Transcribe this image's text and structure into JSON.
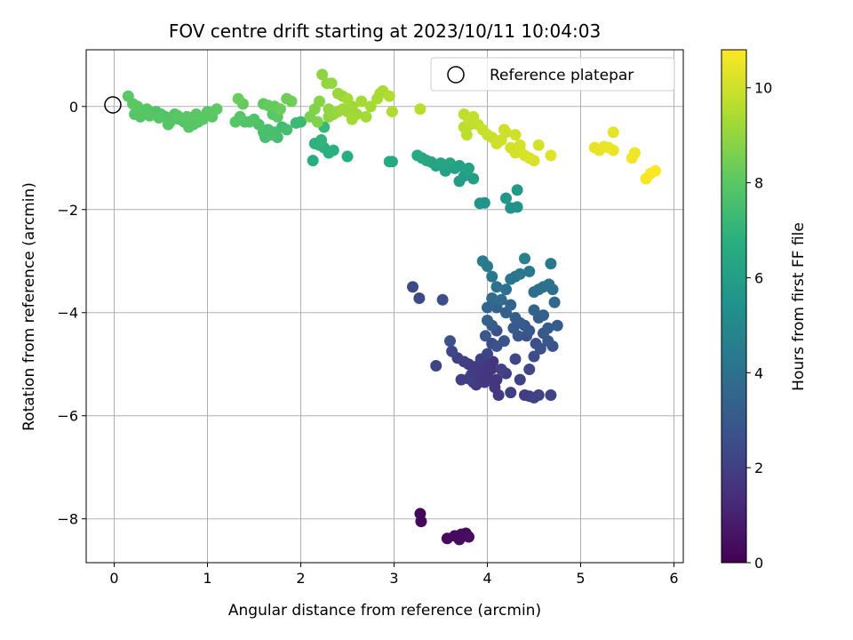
{
  "chart_data": {
    "type": "scatter",
    "title": "FOV centre drift starting at 2023/10/11 10:04:03",
    "xlabel": "Angular distance from reference (arcmin)",
    "ylabel": "Rotation from reference (arcmin)",
    "colorbar_label": "Hours from first FF file",
    "xlim": [
      -0.3,
      6.1
    ],
    "ylim": [
      -8.85,
      1.1
    ],
    "x_ticks": [
      0,
      1,
      2,
      3,
      4,
      5,
      6
    ],
    "y_ticks": [
      -8,
      -6,
      -4,
      -2,
      0
    ],
    "colorbar_range": [
      0,
      10.8
    ],
    "colorbar_ticks": [
      0,
      2,
      4,
      6,
      8,
      10
    ],
    "grid": true,
    "legend": {
      "placement": "top-right",
      "entries": [
        "Reference platepar"
      ]
    },
    "reference_point": {
      "x": 0,
      "y": 0
    },
    "colormap": "viridis",
    "points": [
      {
        "x": 3.28,
        "y": -7.9,
        "t": 0.2
      },
      {
        "x": 3.29,
        "y": -8.05,
        "t": 0.2
      },
      {
        "x": 3.57,
        "y": -8.38,
        "t": 0.3
      },
      {
        "x": 3.65,
        "y": -8.33,
        "t": 0.3
      },
      {
        "x": 3.7,
        "y": -8.4,
        "t": 0.3
      },
      {
        "x": 3.72,
        "y": -8.3,
        "t": 0.35
      },
      {
        "x": 3.77,
        "y": -8.28,
        "t": 0.35
      },
      {
        "x": 3.8,
        "y": -8.35,
        "t": 0.4
      },
      {
        "x": 3.2,
        "y": -3.5,
        "t": 2.4
      },
      {
        "x": 3.27,
        "y": -3.72,
        "t": 2.4
      },
      {
        "x": 3.45,
        "y": -5.03,
        "t": 2.2
      },
      {
        "x": 3.52,
        "y": -3.75,
        "t": 2.6
      },
      {
        "x": 3.6,
        "y": -4.55,
        "t": 2.7
      },
      {
        "x": 3.62,
        "y": -4.75,
        "t": 2.3
      },
      {
        "x": 3.68,
        "y": -4.88,
        "t": 2.1
      },
      {
        "x": 3.72,
        "y": -5.3,
        "t": 2.0
      },
      {
        "x": 3.75,
        "y": -4.95,
        "t": 2.0
      },
      {
        "x": 3.8,
        "y": -5.0,
        "t": 1.9
      },
      {
        "x": 3.83,
        "y": -5.2,
        "t": 1.9
      },
      {
        "x": 3.87,
        "y": -5.05,
        "t": 1.8
      },
      {
        "x": 3.9,
        "y": -5.1,
        "t": 1.8
      },
      {
        "x": 3.92,
        "y": -5.25,
        "t": 1.8
      },
      {
        "x": 3.95,
        "y": -5.15,
        "t": 1.7
      },
      {
        "x": 3.97,
        "y": -5.35,
        "t": 1.7
      },
      {
        "x": 3.99,
        "y": -5.0,
        "t": 1.7
      },
      {
        "x": 4.0,
        "y": -5.2,
        "t": 1.6
      },
      {
        "x": 4.02,
        "y": -5.3,
        "t": 1.6
      },
      {
        "x": 4.04,
        "y": -5.1,
        "t": 1.6
      },
      {
        "x": 4.06,
        "y": -4.95,
        "t": 1.6
      },
      {
        "x": 4.08,
        "y": -5.45,
        "t": 1.7
      },
      {
        "x": 4.1,
        "y": -5.3,
        "t": 1.7
      },
      {
        "x": 4.12,
        "y": -5.6,
        "t": 1.8
      },
      {
        "x": 3.88,
        "y": -5.4,
        "t": 1.8
      },
      {
        "x": 3.85,
        "y": -5.35,
        "t": 1.9
      },
      {
        "x": 3.8,
        "y": -5.28,
        "t": 2.0
      },
      {
        "x": 3.93,
        "y": -4.9,
        "t": 2.0
      },
      {
        "x": 4.0,
        "y": -4.8,
        "t": 2.2
      },
      {
        "x": 4.05,
        "y": -4.6,
        "t": 2.4
      },
      {
        "x": 4.1,
        "y": -4.35,
        "t": 2.6
      },
      {
        "x": 4.15,
        "y": -5.1,
        "t": 2.1
      },
      {
        "x": 4.2,
        "y": -5.18,
        "t": 2.0
      },
      {
        "x": 4.25,
        "y": -5.55,
        "t": 2.0
      },
      {
        "x": 4.3,
        "y": -4.9,
        "t": 2.3
      },
      {
        "x": 4.35,
        "y": -5.3,
        "t": 2.1
      },
      {
        "x": 4.4,
        "y": -5.6,
        "t": 2.0
      },
      {
        "x": 4.45,
        "y": -5.62,
        "t": 2.0
      },
      {
        "x": 4.5,
        "y": -5.65,
        "t": 2.1
      },
      {
        "x": 4.55,
        "y": -5.6,
        "t": 2.1
      },
      {
        "x": 4.68,
        "y": -5.6,
        "t": 2.2
      },
      {
        "x": 4.45,
        "y": -5.1,
        "t": 2.3
      },
      {
        "x": 4.5,
        "y": -4.85,
        "t": 2.5
      },
      {
        "x": 4.57,
        "y": -4.7,
        "t": 2.7
      },
      {
        "x": 4.6,
        "y": -4.4,
        "t": 3.0
      },
      {
        "x": 4.65,
        "y": -4.55,
        "t": 2.9
      },
      {
        "x": 4.7,
        "y": -4.65,
        "t": 2.8
      },
      {
        "x": 4.75,
        "y": -4.25,
        "t": 3.1
      },
      {
        "x": 4.72,
        "y": -3.8,
        "t": 3.6
      },
      {
        "x": 4.7,
        "y": -3.55,
        "t": 3.9
      },
      {
        "x": 4.66,
        "y": -3.45,
        "t": 4.0
      },
      {
        "x": 4.6,
        "y": -3.5,
        "t": 4.0
      },
      {
        "x": 4.55,
        "y": -3.55,
        "t": 3.9
      },
      {
        "x": 4.5,
        "y": -3.6,
        "t": 3.8
      },
      {
        "x": 4.45,
        "y": -3.2,
        "t": 4.3
      },
      {
        "x": 4.4,
        "y": -2.95,
        "t": 4.6
      },
      {
        "x": 4.35,
        "y": -3.25,
        "t": 4.3
      },
      {
        "x": 4.3,
        "y": -3.3,
        "t": 4.2
      },
      {
        "x": 4.25,
        "y": -3.35,
        "t": 4.2
      },
      {
        "x": 4.2,
        "y": -3.55,
        "t": 4.0
      },
      {
        "x": 4.15,
        "y": -3.75,
        "t": 3.8
      },
      {
        "x": 4.1,
        "y": -3.5,
        "t": 4.0
      },
      {
        "x": 4.05,
        "y": -3.3,
        "t": 4.3
      },
      {
        "x": 4.0,
        "y": -3.1,
        "t": 4.4
      },
      {
        "x": 3.95,
        "y": -3.0,
        "t": 4.5
      },
      {
        "x": 4.05,
        "y": -3.72,
        "t": 3.7
      },
      {
        "x": 4.0,
        "y": -3.9,
        "t": 3.5
      },
      {
        "x": 4.1,
        "y": -3.9,
        "t": 3.4
      },
      {
        "x": 4.2,
        "y": -4.0,
        "t": 3.3
      },
      {
        "x": 4.25,
        "y": -3.85,
        "t": 3.5
      },
      {
        "x": 4.3,
        "y": -4.1,
        "t": 3.2
      },
      {
        "x": 4.35,
        "y": -4.2,
        "t": 3.1
      },
      {
        "x": 4.4,
        "y": -4.25,
        "t": 3.0
      },
      {
        "x": 4.45,
        "y": -4.35,
        "t": 2.9
      },
      {
        "x": 4.5,
        "y": -3.95,
        "t": 3.4
      },
      {
        "x": 4.55,
        "y": -4.1,
        "t": 3.2
      },
      {
        "x": 4.6,
        "y": -4.05,
        "t": 3.3
      },
      {
        "x": 4.65,
        "y": -4.3,
        "t": 3.0
      },
      {
        "x": 4.68,
        "y": -3.05,
        "t": 4.4
      },
      {
        "x": 4.0,
        "y": -4.15,
        "t": 3.3
      },
      {
        "x": 3.98,
        "y": -4.45,
        "t": 2.9
      },
      {
        "x": 4.05,
        "y": -4.25,
        "t": 3.1
      },
      {
        "x": 4.1,
        "y": -4.65,
        "t": 2.7
      },
      {
        "x": 4.18,
        "y": -4.55,
        "t": 2.8
      },
      {
        "x": 4.28,
        "y": -4.3,
        "t": 3.0
      },
      {
        "x": 4.33,
        "y": -4.45,
        "t": 2.9
      },
      {
        "x": 4.42,
        "y": -4.45,
        "t": 2.8
      },
      {
        "x": 4.52,
        "y": -4.6,
        "t": 2.6
      },
      {
        "x": 3.92,
        "y": -1.88,
        "t": 5.6
      },
      {
        "x": 3.97,
        "y": -1.87,
        "t": 5.6
      },
      {
        "x": 4.2,
        "y": -1.78,
        "t": 5.7
      },
      {
        "x": 4.25,
        "y": -1.97,
        "t": 5.5
      },
      {
        "x": 4.32,
        "y": -1.95,
        "t": 5.5
      },
      {
        "x": 4.32,
        "y": -1.62,
        "t": 5.8
      },
      {
        "x": 3.85,
        "y": -1.4,
        "t": 6.0
      },
      {
        "x": 3.8,
        "y": -1.2,
        "t": 6.2
      },
      {
        "x": 3.75,
        "y": -1.35,
        "t": 6.0
      },
      {
        "x": 3.7,
        "y": -1.45,
        "t": 5.9
      },
      {
        "x": 3.65,
        "y": -1.2,
        "t": 6.2
      },
      {
        "x": 3.6,
        "y": -1.1,
        "t": 6.3
      },
      {
        "x": 3.55,
        "y": -1.25,
        "t": 6.1
      },
      {
        "x": 3.5,
        "y": -1.1,
        "t": 6.3
      },
      {
        "x": 3.45,
        "y": -1.15,
        "t": 6.2
      },
      {
        "x": 3.4,
        "y": -1.08,
        "t": 6.3
      },
      {
        "x": 3.35,
        "y": -1.05,
        "t": 6.4
      },
      {
        "x": 3.3,
        "y": -1.0,
        "t": 6.4
      },
      {
        "x": 3.25,
        "y": -0.95,
        "t": 6.5
      },
      {
        "x": 3.7,
        "y": -1.15,
        "t": 6.2
      },
      {
        "x": 2.95,
        "y": -1.07,
        "t": 6.5
      },
      {
        "x": 2.98,
        "y": -1.07,
        "t": 6.5
      },
      {
        "x": 2.5,
        "y": -0.97,
        "t": 6.7
      },
      {
        "x": 2.3,
        "y": -0.9,
        "t": 6.8
      },
      {
        "x": 2.25,
        "y": -0.8,
        "t": 6.8
      },
      {
        "x": 2.2,
        "y": -0.75,
        "t": 6.9
      },
      {
        "x": 2.15,
        "y": -0.72,
        "t": 6.9
      },
      {
        "x": 2.22,
        "y": -0.65,
        "t": 7.0
      },
      {
        "x": 2.13,
        "y": -1.05,
        "t": 6.7
      },
      {
        "x": 2.35,
        "y": -0.85,
        "t": 6.8
      },
      {
        "x": 2.25,
        "y": -0.4,
        "t": 7.2
      },
      {
        "x": 2.0,
        "y": -0.3,
        "t": 7.3
      },
      {
        "x": 1.95,
        "y": -0.32,
        "t": 7.3
      },
      {
        "x": 1.8,
        "y": -0.4,
        "t": 7.4
      },
      {
        "x": 1.75,
        "y": -0.6,
        "t": 7.5
      },
      {
        "x": 1.72,
        "y": -0.5,
        "t": 7.5
      },
      {
        "x": 1.68,
        "y": -0.55,
        "t": 7.6
      },
      {
        "x": 1.65,
        "y": -0.45,
        "t": 7.6
      },
      {
        "x": 1.6,
        "y": -0.5,
        "t": 7.6
      },
      {
        "x": 1.55,
        "y": -0.35,
        "t": 7.7
      },
      {
        "x": 1.5,
        "y": -0.25,
        "t": 7.8
      },
      {
        "x": 1.45,
        "y": -0.3,
        "t": 7.8
      },
      {
        "x": 1.4,
        "y": -0.3,
        "t": 7.8
      },
      {
        "x": 1.35,
        "y": -0.2,
        "t": 7.9
      },
      {
        "x": 1.3,
        "y": -0.3,
        "t": 7.9
      },
      {
        "x": 1.62,
        "y": -0.6,
        "t": 7.5
      },
      {
        "x": 1.85,
        "y": -0.45,
        "t": 7.5
      },
      {
        "x": 1.7,
        "y": -0.15,
        "t": 7.9
      },
      {
        "x": 1.75,
        "y": -0.2,
        "t": 8.0
      },
      {
        "x": 1.6,
        "y": 0.05,
        "t": 8.1
      },
      {
        "x": 1.65,
        "y": 0.02,
        "t": 8.2
      },
      {
        "x": 1.72,
        "y": 0.0,
        "t": 8.2
      },
      {
        "x": 1.78,
        "y": -0.05,
        "t": 8.3
      },
      {
        "x": 1.85,
        "y": 0.15,
        "t": 8.4
      },
      {
        "x": 1.9,
        "y": 0.1,
        "t": 8.4
      },
      {
        "x": 1.33,
        "y": 0.15,
        "t": 8.3
      },
      {
        "x": 1.38,
        "y": 0.05,
        "t": 8.2
      },
      {
        "x": 1.1,
        "y": -0.05,
        "t": 8.1
      },
      {
        "x": 1.0,
        "y": -0.1,
        "t": 8.0
      },
      {
        "x": 0.95,
        "y": -0.25,
        "t": 8.0
      },
      {
        "x": 0.9,
        "y": -0.3,
        "t": 7.9
      },
      {
        "x": 0.85,
        "y": -0.35,
        "t": 7.9
      },
      {
        "x": 0.8,
        "y": -0.4,
        "t": 7.9
      },
      {
        "x": 0.75,
        "y": -0.3,
        "t": 7.8
      },
      {
        "x": 0.7,
        "y": -0.25,
        "t": 7.8
      },
      {
        "x": 0.65,
        "y": -0.15,
        "t": 7.8
      },
      {
        "x": 0.6,
        "y": -0.3,
        "t": 7.8
      },
      {
        "x": 0.55,
        "y": -0.2,
        "t": 7.8
      },
      {
        "x": 0.5,
        "y": -0.15,
        "t": 7.8
      },
      {
        "x": 0.45,
        "y": -0.1,
        "t": 7.8
      },
      {
        "x": 0.4,
        "y": -0.12,
        "t": 7.8
      },
      {
        "x": 0.35,
        "y": -0.05,
        "t": 7.9
      },
      {
        "x": 0.3,
        "y": -0.1,
        "t": 7.9
      },
      {
        "x": 0.25,
        "y": 0.0,
        "t": 8.0
      },
      {
        "x": 0.2,
        "y": 0.05,
        "t": 8.0
      },
      {
        "x": 0.15,
        "y": 0.2,
        "t": 8.0
      },
      {
        "x": 0.22,
        "y": -0.15,
        "t": 7.9
      },
      {
        "x": 0.28,
        "y": -0.2,
        "t": 7.9
      },
      {
        "x": 0.38,
        "y": -0.18,
        "t": 7.9
      },
      {
        "x": 0.48,
        "y": -0.22,
        "t": 7.9
      },
      {
        "x": 0.58,
        "y": -0.35,
        "t": 7.9
      },
      {
        "x": 0.68,
        "y": -0.18,
        "t": 8.0
      },
      {
        "x": 0.78,
        "y": -0.2,
        "t": 8.0
      },
      {
        "x": 0.88,
        "y": -0.15,
        "t": 8.0
      },
      {
        "x": 1.05,
        "y": -0.2,
        "t": 8.0
      },
      {
        "x": 2.1,
        "y": -0.2,
        "t": 8.6
      },
      {
        "x": 2.15,
        "y": -0.05,
        "t": 8.7
      },
      {
        "x": 2.18,
        "y": -0.3,
        "t": 8.7
      },
      {
        "x": 2.2,
        "y": 0.1,
        "t": 8.8
      },
      {
        "x": 2.23,
        "y": 0.62,
        "t": 8.9
      },
      {
        "x": 2.28,
        "y": 0.45,
        "t": 9.0
      },
      {
        "x": 2.33,
        "y": 0.45,
        "t": 9.0
      },
      {
        "x": 2.4,
        "y": 0.25,
        "t": 9.1
      },
      {
        "x": 2.45,
        "y": 0.2,
        "t": 9.1
      },
      {
        "x": 2.35,
        "y": -0.15,
        "t": 9.0
      },
      {
        "x": 2.3,
        "y": -0.2,
        "t": 8.9
      },
      {
        "x": 2.4,
        "y": -0.1,
        "t": 9.1
      },
      {
        "x": 2.45,
        "y": -0.05,
        "t": 9.2
      },
      {
        "x": 2.5,
        "y": -0.1,
        "t": 9.2
      },
      {
        "x": 2.55,
        "y": 0.0,
        "t": 9.2
      },
      {
        "x": 2.6,
        "y": -0.15,
        "t": 9.2
      },
      {
        "x": 2.65,
        "y": 0.1,
        "t": 9.3
      },
      {
        "x": 2.7,
        "y": -0.2,
        "t": 9.3
      },
      {
        "x": 2.5,
        "y": 0.15,
        "t": 9.3
      },
      {
        "x": 2.55,
        "y": -0.25,
        "t": 9.3
      },
      {
        "x": 2.75,
        "y": 0.0,
        "t": 9.3
      },
      {
        "x": 2.82,
        "y": 0.15,
        "t": 9.4
      },
      {
        "x": 2.85,
        "y": 0.25,
        "t": 9.4
      },
      {
        "x": 2.88,
        "y": 0.3,
        "t": 9.4
      },
      {
        "x": 2.95,
        "y": 0.2,
        "t": 9.5
      },
      {
        "x": 2.3,
        "y": -0.05,
        "t": 9.0
      },
      {
        "x": 2.98,
        "y": -0.1,
        "t": 9.5
      },
      {
        "x": 3.28,
        "y": -0.05,
        "t": 9.6
      },
      {
        "x": 3.75,
        "y": -0.15,
        "t": 9.7
      },
      {
        "x": 3.8,
        "y": -0.3,
        "t": 9.8
      },
      {
        "x": 3.85,
        "y": -0.2,
        "t": 9.8
      },
      {
        "x": 3.9,
        "y": -0.35,
        "t": 9.8
      },
      {
        "x": 3.75,
        "y": -0.4,
        "t": 9.7
      },
      {
        "x": 3.95,
        "y": -0.45,
        "t": 9.9
      },
      {
        "x": 4.0,
        "y": -0.55,
        "t": 9.9
      },
      {
        "x": 4.05,
        "y": -0.6,
        "t": 9.9
      },
      {
        "x": 4.1,
        "y": -0.72,
        "t": 10.0
      },
      {
        "x": 4.15,
        "y": -0.65,
        "t": 10.0
      },
      {
        "x": 4.2,
        "y": -0.5,
        "t": 10.0
      },
      {
        "x": 4.18,
        "y": -0.45,
        "t": 10.0
      },
      {
        "x": 4.25,
        "y": -0.8,
        "t": 10.1
      },
      {
        "x": 4.3,
        "y": -0.9,
        "t": 10.1
      },
      {
        "x": 4.35,
        "y": -0.85,
        "t": 10.1
      },
      {
        "x": 4.4,
        "y": -0.95,
        "t": 10.2
      },
      {
        "x": 4.45,
        "y": -1.0,
        "t": 10.2
      },
      {
        "x": 4.5,
        "y": -1.05,
        "t": 10.2
      },
      {
        "x": 4.55,
        "y": -0.75,
        "t": 10.1
      },
      {
        "x": 4.3,
        "y": -0.55,
        "t": 10.0
      },
      {
        "x": 4.35,
        "y": -0.75,
        "t": 10.1
      },
      {
        "x": 4.68,
        "y": -0.95,
        "t": 10.3
      },
      {
        "x": 5.15,
        "y": -0.8,
        "t": 10.4
      },
      {
        "x": 5.2,
        "y": -0.85,
        "t": 10.4
      },
      {
        "x": 5.25,
        "y": -0.78,
        "t": 10.4
      },
      {
        "x": 5.3,
        "y": -0.8,
        "t": 10.5
      },
      {
        "x": 5.35,
        "y": -0.85,
        "t": 10.5
      },
      {
        "x": 5.35,
        "y": -0.5,
        "t": 10.4
      },
      {
        "x": 5.55,
        "y": -1.0,
        "t": 10.6
      },
      {
        "x": 5.58,
        "y": -0.9,
        "t": 10.6
      },
      {
        "x": 5.7,
        "y": -1.4,
        "t": 10.7
      },
      {
        "x": 5.75,
        "y": -1.3,
        "t": 10.7
      },
      {
        "x": 5.8,
        "y": -1.25,
        "t": 10.8
      },
      {
        "x": 3.78,
        "y": -0.55,
        "t": 9.7
      },
      {
        "x": 3.82,
        "y": -0.35,
        "t": 9.7
      }
    ]
  }
}
